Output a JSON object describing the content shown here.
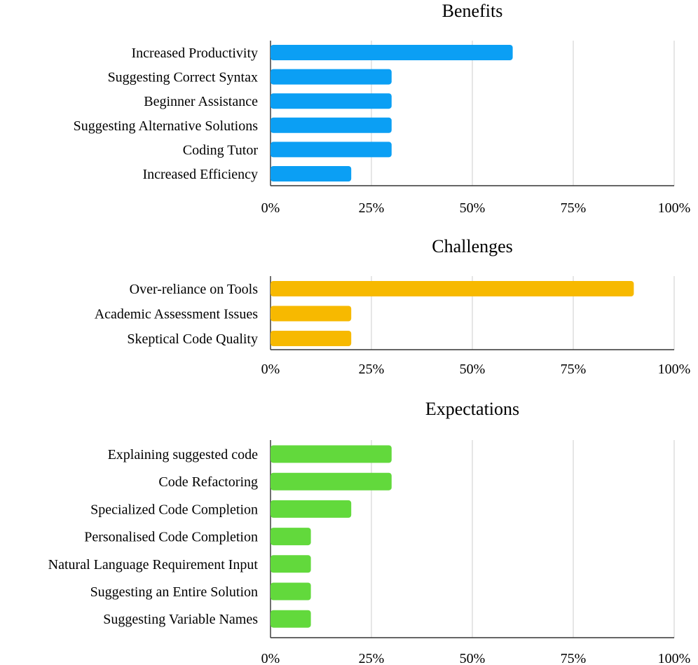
{
  "chart_data": [
    {
      "type": "bar",
      "orientation": "horizontal",
      "title": "Benefits",
      "color": "#0b9ff4",
      "categories": [
        "Increased Productivity",
        "Suggesting Correct Syntax",
        "Beginner Assistance",
        "Suggesting Alternative Solutions",
        "Coding Tutor",
        "Increased Efficiency"
      ],
      "values": [
        60,
        30,
        30,
        30,
        30,
        20
      ],
      "xlim": [
        0,
        100
      ],
      "xticks": [
        "0%",
        "25%",
        "50%",
        "75%",
        "100%"
      ],
      "grid": true
    },
    {
      "type": "bar",
      "orientation": "horizontal",
      "title": "Challenges",
      "color": "#f7b900",
      "categories": [
        "Over-reliance on Tools",
        "Academic Assessment Issues",
        "Skeptical Code Quality"
      ],
      "values": [
        90,
        20,
        20
      ],
      "xlim": [
        0,
        100
      ],
      "xticks": [
        "0%",
        "25%",
        "50%",
        "75%",
        "100%"
      ],
      "grid": true
    },
    {
      "type": "bar",
      "orientation": "horizontal",
      "title": "Expectations",
      "color": "#62d93c",
      "categories": [
        "Explaining suggested code",
        "Code Refactoring",
        "Specialized Code Completion",
        "Personalised Code Completion",
        "Natural Language Requirement Input",
        "Suggesting an Entire Solution",
        "Suggesting Variable Names"
      ],
      "values": [
        30,
        30,
        20,
        10,
        10,
        10,
        10
      ],
      "xlim": [
        0,
        100
      ],
      "xticks": [
        "0%",
        "25%",
        "50%",
        "75%",
        "100%"
      ],
      "grid": true
    }
  ]
}
